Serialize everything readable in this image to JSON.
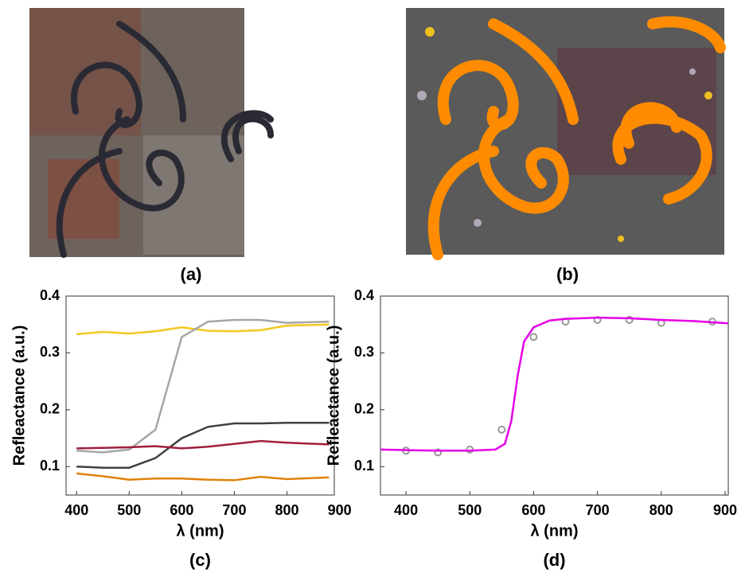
{
  "images": [
    {
      "label": "(a)"
    },
    {
      "label": "(b)"
    }
  ],
  "chart_data": [
    {
      "type": "line",
      "caption": "(c)",
      "xlabel": "λ (nm)",
      "ylabel": "Refleactance (a.u.)",
      "x": [
        400,
        450,
        500,
        550,
        600,
        650,
        700,
        750,
        800,
        880
      ],
      "series": [
        {
          "color": "#f2c81e",
          "values": [
            0.333,
            0.337,
            0.334,
            0.338,
            0.345,
            0.339,
            0.338,
            0.34,
            0.348,
            0.35
          ]
        },
        {
          "color": "#a6a6a6",
          "values": [
            0.128,
            0.125,
            0.13,
            0.165,
            0.328,
            0.355,
            0.358,
            0.358,
            0.353,
            0.355
          ]
        },
        {
          "color": "#404040",
          "values": [
            0.1,
            0.098,
            0.098,
            0.115,
            0.15,
            0.17,
            0.176,
            0.176,
            0.177,
            0.177
          ]
        },
        {
          "color": "#a01e3c",
          "values": [
            0.132,
            0.133,
            0.134,
            0.136,
            0.132,
            0.135,
            0.14,
            0.145,
            0.142,
            0.139
          ]
        },
        {
          "color": "#e0820a",
          "values": [
            0.088,
            0.083,
            0.077,
            0.079,
            0.079,
            0.077,
            0.076,
            0.082,
            0.078,
            0.081
          ]
        }
      ],
      "xlim": [
        380,
        890
      ],
      "xticks": [
        400,
        500,
        600,
        700,
        800,
        900
      ],
      "ylim": [
        0.05,
        0.4
      ],
      "yticks": [
        0.1,
        0.2,
        0.3,
        0.4
      ]
    },
    {
      "type": "scatter",
      "caption": "(d)",
      "xlabel": "λ (nm)",
      "ylabel": "Refleactance (a.u.)",
      "x": [
        400,
        450,
        500,
        550,
        600,
        650,
        700,
        750,
        800,
        880
      ],
      "series": [
        {
          "color": "#999999",
          "style": "markers",
          "values": [
            0.128,
            0.125,
            0.13,
            0.165,
            0.328,
            0.355,
            0.358,
            0.358,
            0.353,
            0.355
          ]
        },
        {
          "color": "#e600e6",
          "style": "line",
          "x": [
            360,
            400,
            450,
            500,
            540,
            555,
            565,
            575,
            585,
            600,
            625,
            650,
            700,
            750,
            800,
            850,
            905
          ],
          "values": [
            0.13,
            0.129,
            0.128,
            0.128,
            0.13,
            0.14,
            0.18,
            0.26,
            0.32,
            0.345,
            0.357,
            0.36,
            0.362,
            0.361,
            0.358,
            0.356,
            0.352
          ]
        }
      ],
      "xlim": [
        360,
        905
      ],
      "xticks": [
        400,
        500,
        600,
        700,
        800,
        900
      ],
      "ylim": [
        0.05,
        0.4
      ],
      "yticks": [
        0.1,
        0.2,
        0.3,
        0.4
      ]
    }
  ]
}
